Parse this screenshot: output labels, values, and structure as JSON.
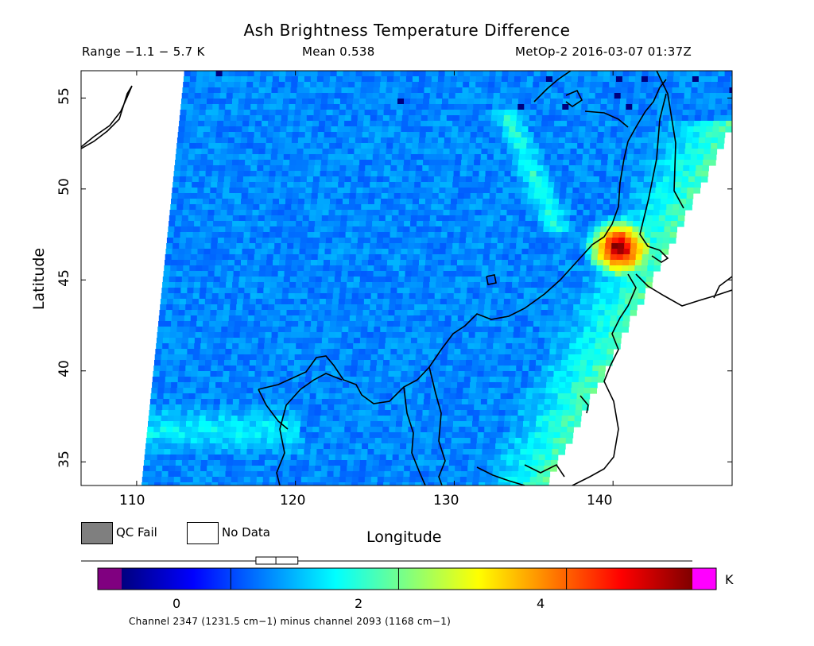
{
  "header": {
    "title": "Ash Brightness Temperature Difference",
    "range": "Range −1.1 − 5.7 K",
    "mean": "Mean 0.538",
    "satellite_time": "MetOp-2 2016-03-07 01:37Z"
  },
  "map": {
    "lon_range": [
      106.5,
      147.5
    ],
    "lat_range": [
      33.7,
      56.5
    ],
    "x_ticks": [
      110,
      120,
      130,
      140
    ],
    "y_ticks": [
      35,
      40,
      45,
      50,
      55
    ],
    "x_label": "Longitude",
    "y_label": "Latitude",
    "x_tick_labels": [
      "110",
      "120",
      "130",
      "140"
    ],
    "y_tick_labels": [
      "35",
      "40",
      "45",
      "50",
      "55"
    ],
    "field": "brightness temperature difference (K)",
    "hotspot_lon_lat": [
      140.3,
      46.8
    ],
    "hotspot_value_K": 5.5
  },
  "legend": {
    "qc_fail": "QC Fail",
    "no_data": "No Data",
    "qc_fail_color": "#7f7f7f",
    "no_data_color": "#ffffff"
  },
  "colorbar": {
    "min": -1.3,
    "max": 5.5,
    "unit": "K",
    "tick_values": [
      0,
      2,
      4
    ],
    "tick_labels": [
      "0",
      "2",
      "4"
    ],
    "under_color": "#800080",
    "over_color": "#ff00ff",
    "colors": [
      "#00007f",
      "#0000ff",
      "#0080ff",
      "#00ffff",
      "#80ff80",
      "#ffff00",
      "#ff8000",
      "#ff0000",
      "#7f0000"
    ],
    "range_bar_values": [
      0.3,
      0.538,
      0.8
    ]
  },
  "footnote": "Channel 2347 (1231.5 cm−1) minus channel 2093 (1168 cm−1)"
}
